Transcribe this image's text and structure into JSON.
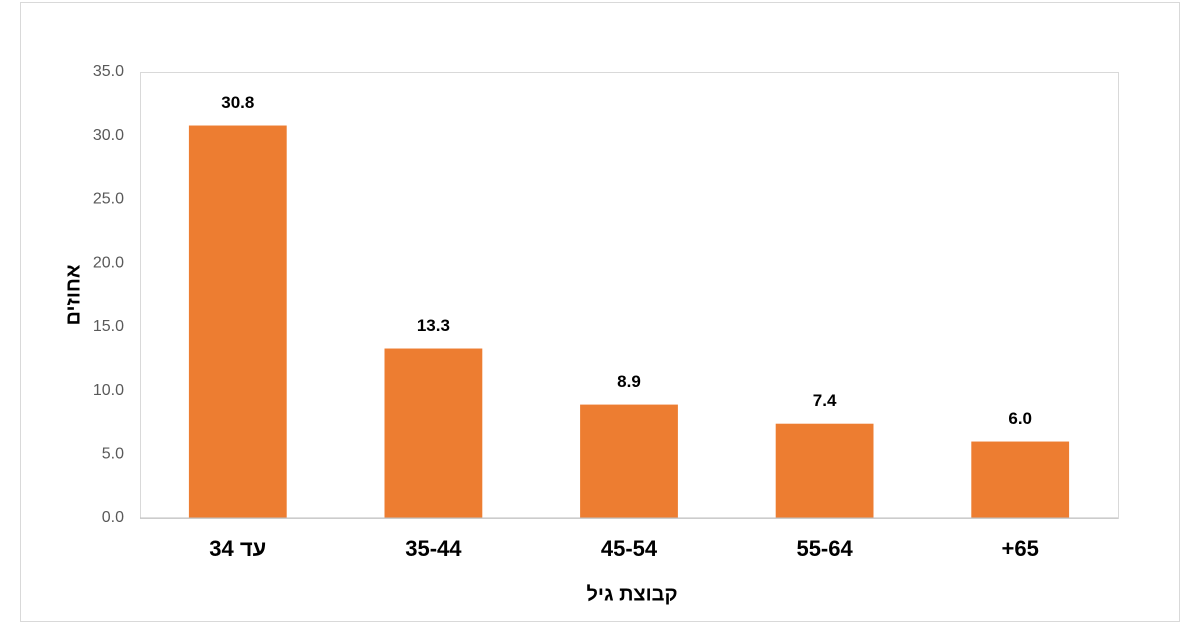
{
  "chart_data": {
    "type": "bar",
    "x_label": "קבוצת גיל",
    "y_label": "אחוזים",
    "categories": [
      "עד 34",
      "35-44",
      "45-54",
      "55-64",
      "+65"
    ],
    "values": [
      30.8,
      13.3,
      8.9,
      7.4,
      6.0
    ],
    "value_labels": [
      "30.8",
      "13.3",
      "8.9",
      "7.4",
      "6.0"
    ],
    "color": "#ed7d31",
    "ylim": [
      0,
      35
    ],
    "yticks": [
      {
        "value": 0,
        "label": "0.0"
      },
      {
        "value": 5,
        "label": "5.0"
      },
      {
        "value": 10,
        "label": "10.0"
      },
      {
        "value": 15,
        "label": "15.0"
      },
      {
        "value": 20,
        "label": "20.0"
      },
      {
        "value": 25,
        "label": "25.0"
      },
      {
        "value": 30,
        "label": "30.0"
      },
      {
        "value": 35,
        "label": "35.0"
      }
    ],
    "grid": false
  }
}
